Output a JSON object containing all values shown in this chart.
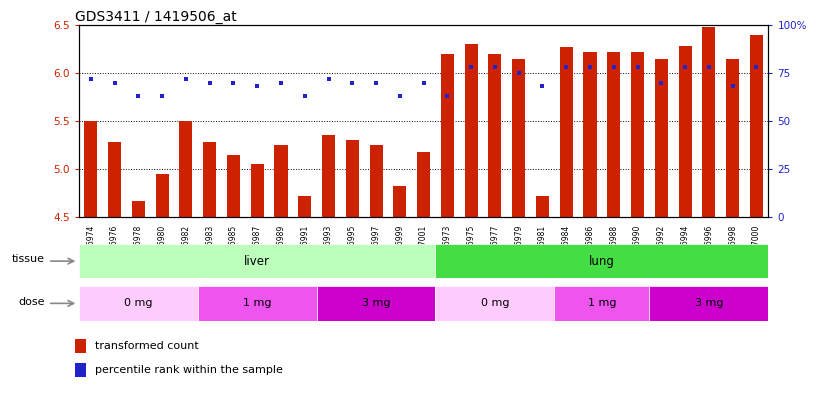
{
  "title": "GDS3411 / 1419506_at",
  "samples": [
    "GSM326974",
    "GSM326976",
    "GSM326978",
    "GSM326980",
    "GSM326982",
    "GSM326983",
    "GSM326985",
    "GSM326987",
    "GSM326989",
    "GSM326991",
    "GSM326993",
    "GSM326995",
    "GSM326997",
    "GSM326999",
    "GSM327001",
    "GSM326973",
    "GSM326975",
    "GSM326977",
    "GSM326979",
    "GSM326981",
    "GSM326984",
    "GSM326986",
    "GSM326988",
    "GSM326990",
    "GSM326992",
    "GSM326994",
    "GSM326996",
    "GSM326998",
    "GSM327000"
  ],
  "bar_values": [
    5.5,
    5.28,
    4.67,
    4.95,
    5.5,
    5.28,
    5.15,
    5.05,
    5.25,
    4.72,
    5.35,
    5.3,
    5.25,
    4.82,
    5.18,
    6.2,
    6.3,
    6.2,
    6.15,
    4.72,
    6.27,
    6.22,
    6.22,
    6.22,
    6.15,
    6.28,
    6.48,
    6.15,
    6.4
  ],
  "dot_values": [
    72,
    70,
    63,
    63,
    72,
    70,
    70,
    68,
    70,
    63,
    72,
    70,
    70,
    63,
    70,
    63,
    78,
    78,
    75,
    68,
    78,
    78,
    78,
    78,
    70,
    78,
    78,
    68,
    78
  ],
  "ylim_left": [
    4.5,
    6.5
  ],
  "ylim_right": [
    0,
    100
  ],
  "yticks_left": [
    4.5,
    5.0,
    5.5,
    6.0,
    6.5
  ],
  "yticks_right": [
    0,
    25,
    50,
    75,
    100
  ],
  "ytick_labels_right": [
    "0",
    "25",
    "50",
    "75",
    "100%"
  ],
  "bar_color": "#cc2200",
  "dot_color": "#2222cc",
  "tissue_liver_color": "#bbffbb",
  "tissue_lung_color": "#44dd44",
  "dose_colors": [
    "#ffccff",
    "#ee55ee",
    "#cc00cc",
    "#ffccff",
    "#ee55ee",
    "#cc00cc"
  ],
  "dose_labels": [
    "0 mg",
    "1 mg",
    "3 mg",
    "0 mg",
    "1 mg",
    "3 mg"
  ],
  "legend_bar_label": "transformed count",
  "legend_dot_label": "percentile rank within the sample",
  "title_fontsize": 10,
  "tick_label_color_left": "#cc2200",
  "tick_label_color_right": "#2222cc",
  "label_fontsize": 7.5,
  "annotation_fontsize": 8
}
